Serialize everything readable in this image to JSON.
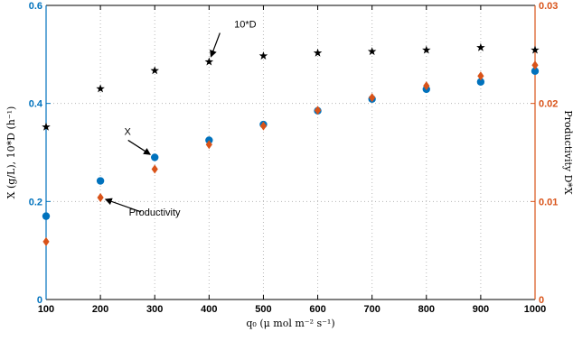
{
  "chart_data": {
    "type": "scatter",
    "title": "",
    "xlabel": "q₀ (μ mol m⁻² s⁻¹)",
    "ylabel_left": "X (g/L), 10*D (h⁻¹)",
    "ylabel_right": "Productivity D*X",
    "x": [
      100,
      200,
      300,
      400,
      500,
      600,
      700,
      800,
      900,
      1000
    ],
    "xlim": [
      100,
      1000
    ],
    "ylim_left": [
      0,
      0.6
    ],
    "ylim_right": [
      0,
      0.03
    ],
    "xticks": [
      "100",
      "200",
      "300",
      "400",
      "500",
      "600",
      "700",
      "800",
      "900",
      "1000"
    ],
    "yticks_left": [
      "0",
      "0.2",
      "0.4",
      "0.6"
    ],
    "yticks_right": [
      "0",
      "0.01",
      "0.02",
      "0.03"
    ],
    "grid": true,
    "series": [
      {
        "name": "10*D",
        "axis": "left",
        "marker": "star",
        "color": "#000000",
        "values": [
          0.352,
          0.43,
          0.467,
          0.485,
          0.497,
          0.503,
          0.506,
          0.509,
          0.514,
          0.509
        ]
      },
      {
        "name": "X",
        "axis": "left",
        "marker": "circle",
        "color": "#0072bd",
        "values": [
          0.17,
          0.242,
          0.29,
          0.325,
          0.357,
          0.385,
          0.409,
          0.429,
          0.444,
          0.466
        ]
      },
      {
        "name": "Productivity",
        "axis": "right",
        "marker": "diamond",
        "color": "#d95319",
        "values": [
          0.0059,
          0.0104,
          0.0133,
          0.0158,
          0.0177,
          0.0193,
          0.0206,
          0.0218,
          0.0228,
          0.0239
        ]
      }
    ],
    "annotations": [
      {
        "text": "10*D",
        "target_series": "10*D",
        "target_x": 400
      },
      {
        "text": "X",
        "target_series": "X",
        "target_x": 300
      },
      {
        "text": "Productivity",
        "target_series": "Productivity",
        "target_x": 200
      }
    ],
    "colors": {
      "left_axis": "#0072bd",
      "right_axis": "#d95319"
    }
  }
}
